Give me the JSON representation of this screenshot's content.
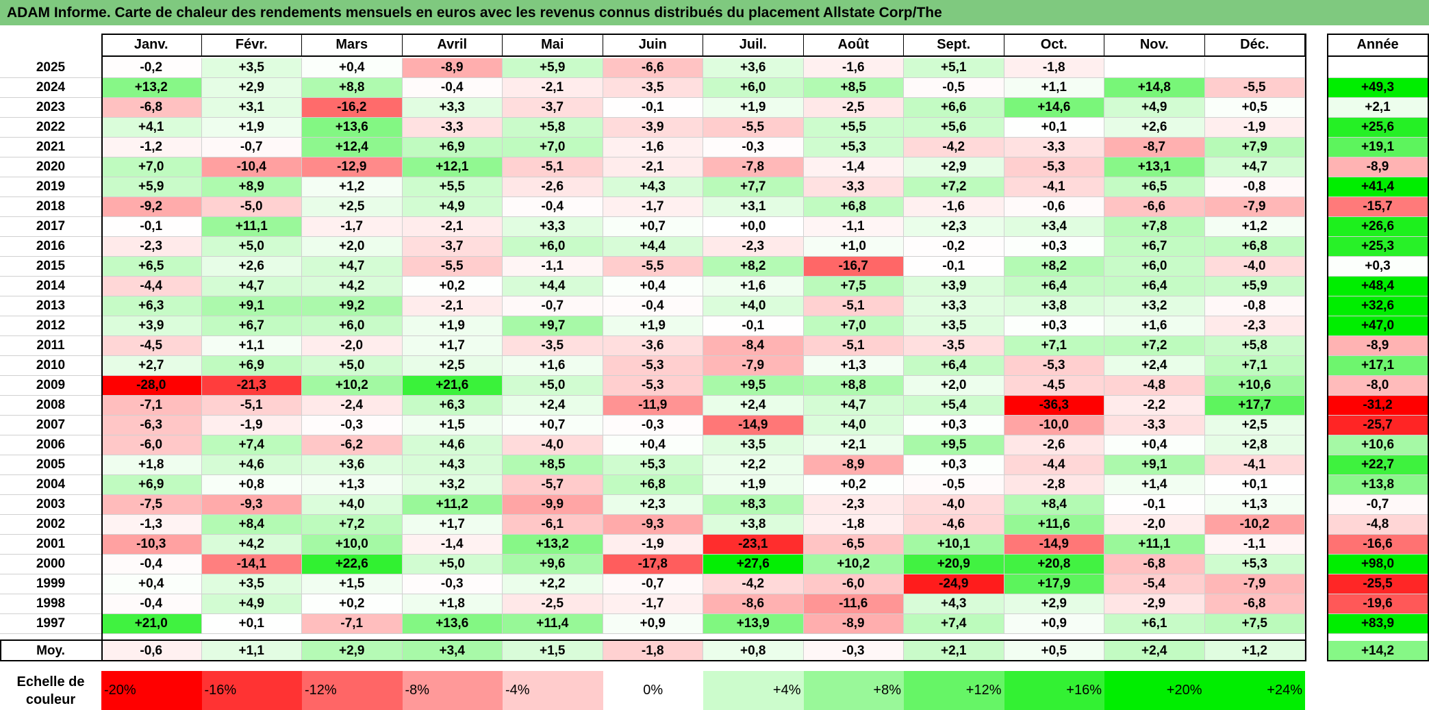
{
  "title": "ADAM Informe. Carte de chaleur des rendements mensuels en euros avec les revenus connus distribués du placement Allstate Corp/The",
  "chart_data": {
    "type": "heatmap",
    "title": "ADAM Informe. Carte de chaleur des rendements mensuels en euros avec les revenus connus distribués du placement Allstate Corp/The",
    "months": [
      "Janv.",
      "Févr.",
      "Mars",
      "Avril",
      "Mai",
      "Juin",
      "Juil.",
      "Août",
      "Sept.",
      "Oct.",
      "Nov.",
      "Déc."
    ],
    "year_header": "Année",
    "avg_label": "Moy.",
    "rows": [
      {
        "year": "2025",
        "values": [
          "-0,2",
          "+3,5",
          "+0,4",
          "-8,9",
          "+5,9",
          "-6,6",
          "+3,6",
          "-1,6",
          "+5,1",
          "-1,8",
          "",
          ""
        ],
        "annual": ""
      },
      {
        "year": "2024",
        "values": [
          "+13,2",
          "+2,9",
          "+8,8",
          "-0,4",
          "-2,1",
          "-3,5",
          "+6,0",
          "+8,5",
          "-0,5",
          "+1,1",
          "+14,8",
          "-5,5"
        ],
        "annual": "+49,3"
      },
      {
        "year": "2023",
        "values": [
          "-6,8",
          "+3,1",
          "-16,2",
          "+3,3",
          "-3,7",
          "-0,1",
          "+1,9",
          "-2,5",
          "+6,6",
          "+14,6",
          "+4,9",
          "+0,5"
        ],
        "annual": "+2,1"
      },
      {
        "year": "2022",
        "values": [
          "+4,1",
          "+1,9",
          "+13,6",
          "-3,3",
          "+5,8",
          "-3,9",
          "-5,5",
          "+5,5",
          "+5,6",
          "+0,1",
          "+2,6",
          "-1,9"
        ],
        "annual": "+25,6"
      },
      {
        "year": "2021",
        "values": [
          "-1,2",
          "-0,7",
          "+12,4",
          "+6,9",
          "+7,0",
          "-1,6",
          "-0,3",
          "+5,3",
          "-4,2",
          "-3,3",
          "-8,7",
          "+7,9"
        ],
        "annual": "+19,1"
      },
      {
        "year": "2020",
        "values": [
          "+7,0",
          "-10,4",
          "-12,9",
          "+12,1",
          "-5,1",
          "-2,1",
          "-7,8",
          "-1,4",
          "+2,9",
          "-5,3",
          "+13,1",
          "+4,7"
        ],
        "annual": "-8,9"
      },
      {
        "year": "2019",
        "values": [
          "+5,9",
          "+8,9",
          "+1,2",
          "+5,5",
          "-2,6",
          "+4,3",
          "+7,7",
          "-3,3",
          "+7,2",
          "-4,1",
          "+6,5",
          "-0,8"
        ],
        "annual": "+41,4"
      },
      {
        "year": "2018",
        "values": [
          "-9,2",
          "-5,0",
          "+2,5",
          "+4,9",
          "-0,4",
          "-1,7",
          "+3,1",
          "+6,8",
          "-1,6",
          "-0,6",
          "-6,6",
          "-7,9"
        ],
        "annual": "-15,7"
      },
      {
        "year": "2017",
        "values": [
          "-0,1",
          "+11,1",
          "-1,7",
          "-2,1",
          "+3,3",
          "+0,7",
          "+0,0",
          "-1,1",
          "+2,3",
          "+3,4",
          "+7,8",
          "+1,2"
        ],
        "annual": "+26,6"
      },
      {
        "year": "2016",
        "values": [
          "-2,3",
          "+5,0",
          "+2,0",
          "-3,7",
          "+6,0",
          "+4,4",
          "-2,3",
          "+1,0",
          "-0,2",
          "+0,3",
          "+6,7",
          "+6,8"
        ],
        "annual": "+25,3"
      },
      {
        "year": "2015",
        "values": [
          "+6,5",
          "+2,6",
          "+4,7",
          "-5,5",
          "-1,1",
          "-5,5",
          "+8,2",
          "-16,7",
          "-0,1",
          "+8,2",
          "+6,0",
          "-4,0"
        ],
        "annual": "+0,3"
      },
      {
        "year": "2014",
        "values": [
          "-4,4",
          "+4,7",
          "+4,2",
          "+0,2",
          "+4,4",
          "+0,4",
          "+1,6",
          "+7,5",
          "+3,9",
          "+6,4",
          "+6,4",
          "+5,9"
        ],
        "annual": "+48,4"
      },
      {
        "year": "2013",
        "values": [
          "+6,3",
          "+9,1",
          "+9,2",
          "-2,1",
          "-0,7",
          "-0,4",
          "+4,0",
          "-5,1",
          "+3,3",
          "+3,8",
          "+3,2",
          "-0,8"
        ],
        "annual": "+32,6"
      },
      {
        "year": "2012",
        "values": [
          "+3,9",
          "+6,7",
          "+6,0",
          "+1,9",
          "+9,7",
          "+1,9",
          "-0,1",
          "+7,0",
          "+3,5",
          "+0,3",
          "+1,6",
          "-2,3"
        ],
        "annual": "+47,0"
      },
      {
        "year": "2011",
        "values": [
          "-4,5",
          "+1,1",
          "-2,0",
          "+1,7",
          "-3,5",
          "-3,6",
          "-8,4",
          "-5,1",
          "-3,5",
          "+7,1",
          "+7,2",
          "+5,8"
        ],
        "annual": "-8,9"
      },
      {
        "year": "2010",
        "values": [
          "+2,7",
          "+6,9",
          "+5,0",
          "+2,5",
          "+1,6",
          "-5,3",
          "-7,9",
          "+1,3",
          "+6,4",
          "-5,3",
          "+2,4",
          "+7,1"
        ],
        "annual": "+17,1"
      },
      {
        "year": "2009",
        "values": [
          "-28,0",
          "-21,3",
          "+10,2",
          "+21,6",
          "+5,0",
          "-5,3",
          "+9,5",
          "+8,8",
          "+2,0",
          "-4,5",
          "-4,8",
          "+10,6"
        ],
        "annual": "-8,0"
      },
      {
        "year": "2008",
        "values": [
          "-7,1",
          "-5,1",
          "-2,4",
          "+6,3",
          "+2,4",
          "-11,9",
          "+2,4",
          "+4,7",
          "+5,4",
          "-36,3",
          "-2,2",
          "+17,7"
        ],
        "annual": "-31,2"
      },
      {
        "year": "2007",
        "values": [
          "-6,3",
          "-1,9",
          "-0,3",
          "+1,5",
          "+0,7",
          "-0,3",
          "-14,9",
          "+4,0",
          "+0,3",
          "-10,0",
          "-3,3",
          "+2,5"
        ],
        "annual": "-25,7"
      },
      {
        "year": "2006",
        "values": [
          "-6,0",
          "+7,4",
          "-6,2",
          "+4,6",
          "-4,0",
          "+0,4",
          "+3,5",
          "+2,1",
          "+9,5",
          "-2,6",
          "+0,4",
          "+2,8"
        ],
        "annual": "+10,6"
      },
      {
        "year": "2005",
        "values": [
          "+1,8",
          "+4,6",
          "+3,6",
          "+4,3",
          "+8,5",
          "+5,3",
          "+2,2",
          "-8,9",
          "+0,3",
          "-4,4",
          "+9,1",
          "-4,1"
        ],
        "annual": "+22,7"
      },
      {
        "year": "2004",
        "values": [
          "+6,9",
          "+0,8",
          "+1,3",
          "+3,2",
          "-5,7",
          "+6,8",
          "+1,9",
          "+0,2",
          "-0,5",
          "-2,8",
          "+1,4",
          "+0,1"
        ],
        "annual": "+13,8"
      },
      {
        "year": "2003",
        "values": [
          "-7,5",
          "-9,3",
          "+4,0",
          "+11,2",
          "-9,9",
          "+2,3",
          "+8,3",
          "-2,3",
          "-4,0",
          "+8,4",
          "-0,1",
          "+1,3"
        ],
        "annual": "-0,7"
      },
      {
        "year": "2002",
        "values": [
          "-1,3",
          "+8,4",
          "+7,2",
          "+1,7",
          "-6,1",
          "-9,3",
          "+3,8",
          "-1,8",
          "-4,6",
          "+11,6",
          "-2,0",
          "-10,2"
        ],
        "annual": "-4,8"
      },
      {
        "year": "2001",
        "values": [
          "-10,3",
          "+4,2",
          "+10,0",
          "-1,4",
          "+13,2",
          "-1,9",
          "-23,1",
          "-6,5",
          "+10,1",
          "-14,9",
          "+11,1",
          "-1,1"
        ],
        "annual": "-16,6"
      },
      {
        "year": "2000",
        "values": [
          "-0,4",
          "-14,1",
          "+22,6",
          "+5,0",
          "+9,6",
          "-17,8",
          "+27,6",
          "+10,2",
          "+20,9",
          "+20,8",
          "-6,8",
          "+5,3"
        ],
        "annual": "+98,0"
      },
      {
        "year": "1999",
        "values": [
          "+0,4",
          "+3,5",
          "+1,5",
          "-0,3",
          "+2,2",
          "-0,7",
          "-4,2",
          "-6,0",
          "-24,9",
          "+17,9",
          "-5,4",
          "-7,9"
        ],
        "annual": "-25,5"
      },
      {
        "year": "1998",
        "values": [
          "-0,4",
          "+4,9",
          "+0,2",
          "+1,8",
          "-2,5",
          "-1,7",
          "-8,6",
          "-11,6",
          "+4,3",
          "+2,9",
          "-2,9",
          "-6,8"
        ],
        "annual": "-19,6"
      },
      {
        "year": "1997",
        "values": [
          "+21,0",
          "+0,1",
          "-7,1",
          "+13,6",
          "+11,4",
          "+0,9",
          "+13,9",
          "-8,9",
          "+7,4",
          "+0,9",
          "+6,1",
          "+7,5"
        ],
        "annual": "+83,9"
      }
    ],
    "averages": {
      "values": [
        "-0,6",
        "+1,1",
        "+2,9",
        "+3,4",
        "+1,5",
        "-1,8",
        "+0,8",
        "-0,3",
        "+2,1",
        "+0,5",
        "+2,4",
        "+1,2"
      ],
      "annual": "+14,2"
    },
    "scale_label_line1": "Echelle de",
    "scale_label_line2": "couleur",
    "scale": [
      "-20%",
      "-16%",
      "-12%",
      "-8%",
      "-4%",
      "0%",
      "+4%",
      "+8%",
      "+12%",
      "+16%",
      "+20%",
      "+24%"
    ],
    "colors": {
      "neg": "#ff0000",
      "pos": "#00ee00",
      "zero": "#ffffff",
      "title_bg": "#7fc97f"
    }
  }
}
